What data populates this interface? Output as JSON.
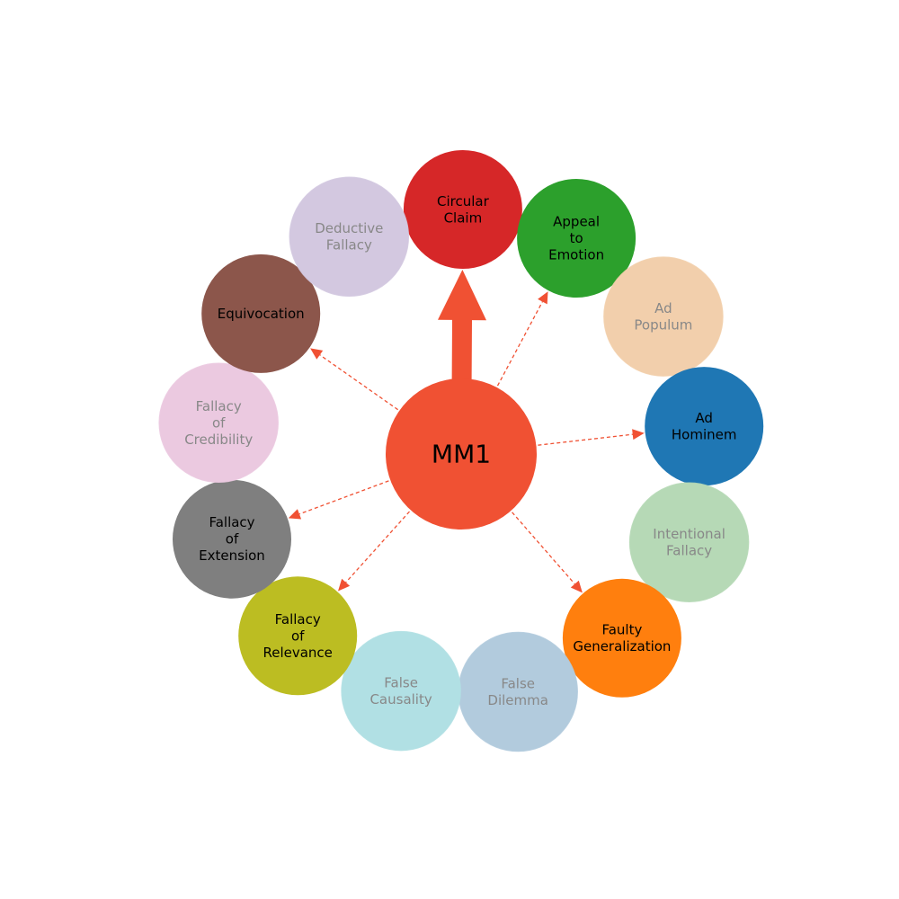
{
  "center": {
    "label": "MM1",
    "color": "#f05133",
    "text_color": "#000000"
  },
  "edge_color": "#f05133",
  "nodes": [
    {
      "id": "circular-claim",
      "lines": [
        "Circular",
        "Claim"
      ],
      "color": "#d62728",
      "text_color": "#000000",
      "faded": false,
      "edge": "thick"
    },
    {
      "id": "appeal-to-emotion",
      "lines": [
        "Appeal",
        "to",
        "Emotion"
      ],
      "color": "#2ca02c",
      "text_color": "#000000",
      "faded": false,
      "edge": "dashed"
    },
    {
      "id": "ad-populum",
      "lines": [
        "Ad",
        "Populum"
      ],
      "color": "#ffdab5",
      "text_color": "#888888",
      "faded": true,
      "edge": "none"
    },
    {
      "id": "ad-hominem",
      "lines": [
        "Ad",
        "Hominem"
      ],
      "color": "#1f77b4",
      "text_color": "#000000",
      "faded": false,
      "edge": "dashed"
    },
    {
      "id": "intentional-fallacy",
      "lines": [
        "Intentional",
        "Fallacy"
      ],
      "color": "#c0e4c0",
      "text_color": "#888888",
      "faded": true,
      "edge": "none"
    },
    {
      "id": "faulty-generalization",
      "lines": [
        "Faulty",
        "Generalization"
      ],
      "color": "#ff7f0e",
      "text_color": "#000000",
      "faded": false,
      "edge": "dashed"
    },
    {
      "id": "false-dilemma",
      "lines": [
        "False",
        "Dilemma"
      ],
      "color": "#bbd6e9",
      "text_color": "#888888",
      "faded": true,
      "edge": "none"
    },
    {
      "id": "false-causality",
      "lines": [
        "False",
        "Causality"
      ],
      "color": "#baecf0",
      "text_color": "#888888",
      "faded": true,
      "edge": "none"
    },
    {
      "id": "fallacy-of-relevance",
      "lines": [
        "Fallacy",
        "of",
        "Relevance"
      ],
      "color": "#bcbd22",
      "text_color": "#000000",
      "faded": false,
      "edge": "dashed"
    },
    {
      "id": "fallacy-of-extension",
      "lines": [
        "Fallacy",
        "of",
        "Extension"
      ],
      "color": "#7f7f7f",
      "text_color": "#000000",
      "faded": false,
      "edge": "dashed"
    },
    {
      "id": "fallacy-of-credibility",
      "lines": [
        "Fallacy",
        "of",
        "Credibility"
      ],
      "color": "#f7d4ec",
      "text_color": "#888888",
      "faded": true,
      "edge": "none"
    },
    {
      "id": "equivocation",
      "lines": [
        "Equivocation"
      ],
      "color": "#8c564b",
      "text_color": "#000000",
      "faded": false,
      "edge": "dashed"
    },
    {
      "id": "deductive-fallacy",
      "lines": [
        "Deductive",
        "Fallacy"
      ],
      "color": "#ded3ec",
      "text_color": "#888888",
      "faded": true,
      "edge": "none"
    }
  ]
}
